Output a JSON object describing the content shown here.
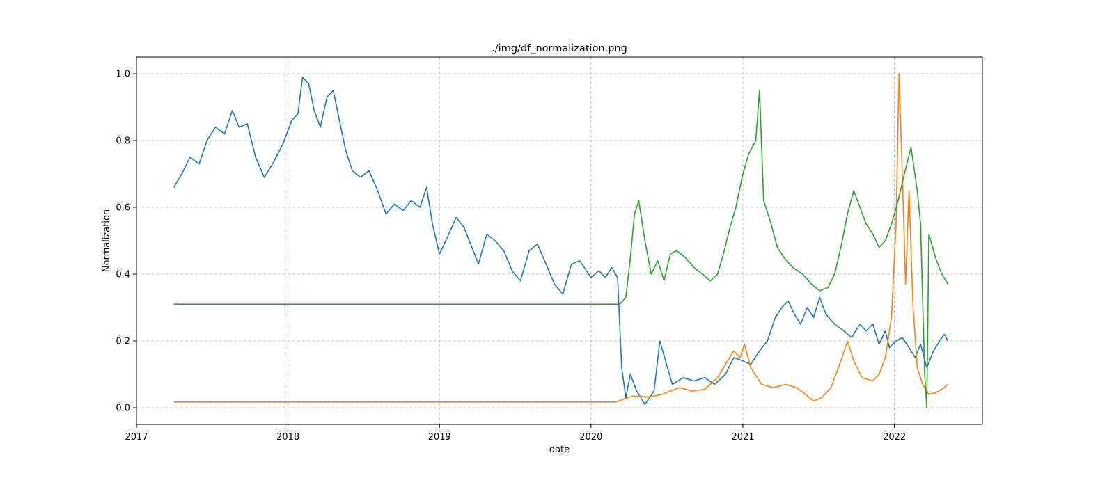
{
  "chart_data": {
    "type": "line",
    "title": "./img/df_normalization.png",
    "xlabel": "date",
    "ylabel": "Normalization",
    "xlim": [
      "2017-01-01",
      "2022-08-01"
    ],
    "ylim": [
      -0.05,
      1.05
    ],
    "x_ticks": [
      "2017",
      "2018",
      "2019",
      "2020",
      "2021",
      "2022"
    ],
    "y_ticks": [
      "0.0",
      "0.2",
      "0.4",
      "0.6",
      "0.8",
      "1.0"
    ],
    "grid": true,
    "legend": "none",
    "series": [
      {
        "color": "#1f77b4",
        "points": [
          [
            "2017-04-01",
            0.66
          ],
          [
            "2017-04-20",
            0.7
          ],
          [
            "2017-05-10",
            0.75
          ],
          [
            "2017-06-01",
            0.73
          ],
          [
            "2017-06-20",
            0.8
          ],
          [
            "2017-07-10",
            0.84
          ],
          [
            "2017-08-01",
            0.82
          ],
          [
            "2017-08-20",
            0.89
          ],
          [
            "2017-09-05",
            0.84
          ],
          [
            "2017-09-25",
            0.85
          ],
          [
            "2017-10-15",
            0.75
          ],
          [
            "2017-11-05",
            0.69
          ],
          [
            "2017-11-25",
            0.73
          ],
          [
            "2017-12-20",
            0.79
          ],
          [
            "2018-01-10",
            0.86
          ],
          [
            "2018-01-25",
            0.88
          ],
          [
            "2018-02-05",
            0.99
          ],
          [
            "2018-02-20",
            0.97
          ],
          [
            "2018-03-05",
            0.89
          ],
          [
            "2018-03-20",
            0.84
          ],
          [
            "2018-04-05",
            0.93
          ],
          [
            "2018-04-20",
            0.95
          ],
          [
            "2018-05-05",
            0.86
          ],
          [
            "2018-05-20",
            0.77
          ],
          [
            "2018-06-05",
            0.71
          ],
          [
            "2018-06-25",
            0.69
          ],
          [
            "2018-07-15",
            0.71
          ],
          [
            "2018-08-05",
            0.65
          ],
          [
            "2018-08-25",
            0.58
          ],
          [
            "2018-09-15",
            0.61
          ],
          [
            "2018-10-05",
            0.59
          ],
          [
            "2018-10-25",
            0.62
          ],
          [
            "2018-11-15",
            0.6
          ],
          [
            "2018-12-01",
            0.66
          ],
          [
            "2018-12-15",
            0.55
          ],
          [
            "2019-01-01",
            0.46
          ],
          [
            "2019-01-20",
            0.51
          ],
          [
            "2019-02-10",
            0.57
          ],
          [
            "2019-03-01",
            0.54
          ],
          [
            "2019-03-20",
            0.48
          ],
          [
            "2019-04-05",
            0.43
          ],
          [
            "2019-04-25",
            0.52
          ],
          [
            "2019-05-15",
            0.5
          ],
          [
            "2019-06-05",
            0.47
          ],
          [
            "2019-06-25",
            0.41
          ],
          [
            "2019-07-15",
            0.38
          ],
          [
            "2019-08-05",
            0.47
          ],
          [
            "2019-08-25",
            0.49
          ],
          [
            "2019-09-15",
            0.43
          ],
          [
            "2019-10-05",
            0.37
          ],
          [
            "2019-10-25",
            0.34
          ],
          [
            "2019-11-15",
            0.43
          ],
          [
            "2019-12-05",
            0.44
          ],
          [
            "2020-01-01",
            0.39
          ],
          [
            "2020-01-20",
            0.41
          ],
          [
            "2020-02-05",
            0.39
          ],
          [
            "2020-02-20",
            0.42
          ],
          [
            "2020-03-05",
            0.39
          ],
          [
            "2020-03-15",
            0.12
          ],
          [
            "2020-03-25",
            0.03
          ],
          [
            "2020-04-05",
            0.1
          ],
          [
            "2020-04-20",
            0.05
          ],
          [
            "2020-05-10",
            0.01
          ],
          [
            "2020-06-01",
            0.05
          ],
          [
            "2020-06-15",
            0.2
          ],
          [
            "2020-07-01",
            0.13
          ],
          [
            "2020-07-15",
            0.07
          ],
          [
            "2020-08-10",
            0.09
          ],
          [
            "2020-09-05",
            0.08
          ],
          [
            "2020-10-01",
            0.09
          ],
          [
            "2020-10-25",
            0.07
          ],
          [
            "2020-11-20",
            0.1
          ],
          [
            "2020-12-10",
            0.15
          ],
          [
            "2021-01-01",
            0.14
          ],
          [
            "2021-01-20",
            0.13
          ],
          [
            "2021-02-10",
            0.17
          ],
          [
            "2021-03-01",
            0.2
          ],
          [
            "2021-03-20",
            0.27
          ],
          [
            "2021-04-05",
            0.3
          ],
          [
            "2021-04-20",
            0.32
          ],
          [
            "2021-05-05",
            0.28
          ],
          [
            "2021-05-20",
            0.25
          ],
          [
            "2021-06-05",
            0.3
          ],
          [
            "2021-06-20",
            0.27
          ],
          [
            "2021-07-05",
            0.33
          ],
          [
            "2021-07-20",
            0.28
          ],
          [
            "2021-08-10",
            0.25
          ],
          [
            "2021-09-01",
            0.23
          ],
          [
            "2021-09-20",
            0.21
          ],
          [
            "2021-10-10",
            0.25
          ],
          [
            "2021-10-25",
            0.23
          ],
          [
            "2021-11-10",
            0.25
          ],
          [
            "2021-11-25",
            0.19
          ],
          [
            "2021-12-10",
            0.23
          ],
          [
            "2021-12-20",
            0.18
          ],
          [
            "2022-01-05",
            0.2
          ],
          [
            "2022-01-20",
            0.21
          ],
          [
            "2022-02-05",
            0.18
          ],
          [
            "2022-02-20",
            0.15
          ],
          [
            "2022-03-05",
            0.19
          ],
          [
            "2022-03-20",
            0.12
          ],
          [
            "2022-04-05",
            0.17
          ],
          [
            "2022-04-20",
            0.2
          ],
          [
            "2022-05-01",
            0.22
          ],
          [
            "2022-05-10",
            0.2
          ]
        ]
      },
      {
        "color": "#ff7f0e",
        "points": [
          [
            "2017-04-01",
            0.017
          ],
          [
            "2020-03-01",
            0.017
          ],
          [
            "2020-04-10",
            0.035
          ],
          [
            "2020-05-20",
            0.032
          ],
          [
            "2020-06-20",
            0.04
          ],
          [
            "2020-08-01",
            0.06
          ],
          [
            "2020-09-01",
            0.05
          ],
          [
            "2020-10-01",
            0.055
          ],
          [
            "2020-11-01",
            0.09
          ],
          [
            "2020-11-25",
            0.14
          ],
          [
            "2020-12-10",
            0.17
          ],
          [
            "2020-12-25",
            0.15
          ],
          [
            "2021-01-05",
            0.19
          ],
          [
            "2021-01-20",
            0.12
          ],
          [
            "2021-02-15",
            0.07
          ],
          [
            "2021-03-15",
            0.06
          ],
          [
            "2021-04-15",
            0.07
          ],
          [
            "2021-05-10",
            0.06
          ],
          [
            "2021-06-01",
            0.04
          ],
          [
            "2021-06-20",
            0.02
          ],
          [
            "2021-07-10",
            0.03
          ],
          [
            "2021-08-01",
            0.06
          ],
          [
            "2021-08-25",
            0.14
          ],
          [
            "2021-09-10",
            0.2
          ],
          [
            "2021-09-25",
            0.14
          ],
          [
            "2021-10-15",
            0.09
          ],
          [
            "2021-11-10",
            0.08
          ],
          [
            "2021-11-25",
            0.1
          ],
          [
            "2021-12-10",
            0.15
          ],
          [
            "2021-12-25",
            0.27
          ],
          [
            "2022-01-05",
            0.55
          ],
          [
            "2022-01-12",
            1.0
          ],
          [
            "2022-01-20",
            0.7
          ],
          [
            "2022-01-28",
            0.37
          ],
          [
            "2022-02-05",
            0.65
          ],
          [
            "2022-02-15",
            0.3
          ],
          [
            "2022-02-25",
            0.12
          ],
          [
            "2022-03-10",
            0.07
          ],
          [
            "2022-03-25",
            0.04
          ],
          [
            "2022-04-10",
            0.045
          ],
          [
            "2022-04-25",
            0.055
          ],
          [
            "2022-05-10",
            0.07
          ]
        ]
      },
      {
        "color": "#2ca02c",
        "points": [
          [
            "2017-04-01",
            0.31
          ],
          [
            "2020-03-10",
            0.31
          ],
          [
            "2020-03-25",
            0.33
          ],
          [
            "2020-04-05",
            0.45
          ],
          [
            "2020-04-15",
            0.58
          ],
          [
            "2020-04-25",
            0.62
          ],
          [
            "2020-05-10",
            0.5
          ],
          [
            "2020-05-25",
            0.4
          ],
          [
            "2020-06-10",
            0.44
          ],
          [
            "2020-06-25",
            0.38
          ],
          [
            "2020-07-10",
            0.46
          ],
          [
            "2020-07-25",
            0.47
          ],
          [
            "2020-08-15",
            0.45
          ],
          [
            "2020-09-05",
            0.42
          ],
          [
            "2020-09-25",
            0.4
          ],
          [
            "2020-10-15",
            0.38
          ],
          [
            "2020-11-01",
            0.4
          ],
          [
            "2020-11-15",
            0.46
          ],
          [
            "2020-12-01",
            0.54
          ],
          [
            "2020-12-15",
            0.6
          ],
          [
            "2021-01-01",
            0.7
          ],
          [
            "2021-01-15",
            0.76
          ],
          [
            "2021-02-01",
            0.8
          ],
          [
            "2021-02-10",
            0.95
          ],
          [
            "2021-02-20",
            0.62
          ],
          [
            "2021-03-10",
            0.55
          ],
          [
            "2021-03-25",
            0.48
          ],
          [
            "2021-04-10",
            0.45
          ],
          [
            "2021-05-01",
            0.42
          ],
          [
            "2021-05-25",
            0.4
          ],
          [
            "2021-06-15",
            0.37
          ],
          [
            "2021-07-05",
            0.35
          ],
          [
            "2021-07-25",
            0.36
          ],
          [
            "2021-08-10",
            0.4
          ],
          [
            "2021-08-25",
            0.48
          ],
          [
            "2021-09-10",
            0.58
          ],
          [
            "2021-09-25",
            0.65
          ],
          [
            "2021-10-10",
            0.6
          ],
          [
            "2021-10-25",
            0.55
          ],
          [
            "2021-11-10",
            0.52
          ],
          [
            "2021-11-25",
            0.48
          ],
          [
            "2021-12-10",
            0.5
          ],
          [
            "2021-12-25",
            0.55
          ],
          [
            "2022-01-10",
            0.62
          ],
          [
            "2022-01-25",
            0.7
          ],
          [
            "2022-02-10",
            0.78
          ],
          [
            "2022-02-25",
            0.65
          ],
          [
            "2022-03-05",
            0.55
          ],
          [
            "2022-03-15",
            0.1
          ],
          [
            "2022-03-20",
            0.0
          ],
          [
            "2022-03-25",
            0.52
          ],
          [
            "2022-04-10",
            0.45
          ],
          [
            "2022-04-25",
            0.4
          ],
          [
            "2022-05-10",
            0.37
          ]
        ]
      }
    ]
  }
}
